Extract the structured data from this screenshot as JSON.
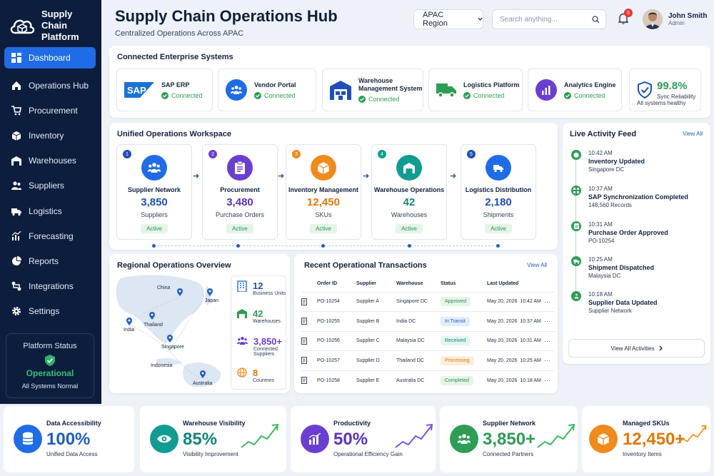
{
  "brand": {
    "name": "Supply Chain Platform"
  },
  "sidebar": {
    "items": [
      {
        "label": "Dashboard",
        "icon": "grid-icon"
      },
      {
        "label": "Operations Hub",
        "icon": "home-icon"
      },
      {
        "label": "Procurement",
        "icon": "cart-icon"
      },
      {
        "label": "Inventory",
        "icon": "box-icon"
      },
      {
        "label": "Warehouses",
        "icon": "warehouse-icon"
      },
      {
        "label": "Suppliers",
        "icon": "users-icon"
      },
      {
        "label": "Logistics",
        "icon": "truck-icon"
      },
      {
        "label": "Forecasting",
        "icon": "chart-icon"
      },
      {
        "label": "Reports",
        "icon": "report-icon"
      },
      {
        "label": "Integrations",
        "icon": "integrations-icon"
      },
      {
        "label": "Settings",
        "icon": "gear-icon"
      }
    ],
    "status": {
      "title": "Platform Status",
      "state": "Operational",
      "note": "All Systems Normal"
    }
  },
  "header": {
    "title": "Supply Chain Operations Hub",
    "subtitle": "Centralized Operations Across APAC",
    "region": "APAC Region",
    "search_placeholder": "Search anything...",
    "notifications": "5",
    "user": {
      "name": "John Smith",
      "role": "Admin"
    }
  },
  "connected": {
    "title": "Connected Enterprise Systems",
    "systems": [
      {
        "name": "SAP ERP",
        "status": "Connected"
      },
      {
        "name": "Vendor Portal",
        "status": "Connected"
      },
      {
        "name": "Warehouse Management System",
        "status": "Connected"
      },
      {
        "name": "Logistics Platform",
        "status": "Connected"
      },
      {
        "name": "Analytics Engine",
        "status": "Connected"
      }
    ],
    "reliability": {
      "value": "99.8%",
      "label": "Sync Reliability",
      "note": "All systems healthy"
    }
  },
  "workspace": {
    "title": "Unified Operations Workspace",
    "steps": [
      {
        "num": "1",
        "name": "Supplier Network",
        "value": "3,850",
        "sub": "Suppliers",
        "status": "Active",
        "color": "#1f6ce6"
      },
      {
        "num": "2",
        "name": "Procurement",
        "value": "3,480",
        "sub": "Purchase Orders",
        "status": "Active",
        "color": "#6a3fd0"
      },
      {
        "num": "3",
        "name": "Inventory Management",
        "value": "12,450",
        "sub": "SKUs",
        "status": "Active",
        "color": "#f08a1c"
      },
      {
        "num": "4",
        "name": "Warehouse Operations",
        "value": "42",
        "sub": "Warehouses",
        "status": "Active",
        "color": "#119c92"
      },
      {
        "num": "5",
        "name": "Logistics Distribution",
        "value": "2,180",
        "sub": "Shipments",
        "status": "Active",
        "color": "#1f6ce6"
      }
    ]
  },
  "feed": {
    "title": "Live Activity Feed",
    "view_all": "View All",
    "items": [
      {
        "time": "10:42 AM",
        "title": "Inventory Updated",
        "sub": "Singapore DC"
      },
      {
        "time": "10:37 AM",
        "title": "SAP Synchronization Completed",
        "sub": "148,560 Records"
      },
      {
        "time": "10:31 AM",
        "title": "Purchase Order Approved",
        "sub": "PO-10254"
      },
      {
        "time": "10:25 AM",
        "title": "Shipment Dispatched",
        "sub": "Malaysia DC"
      },
      {
        "time": "10:18 AM",
        "title": "Supplier Data Updated",
        "sub": "Supplier Network"
      }
    ],
    "view_all_activities": "View All Activities"
  },
  "regional": {
    "title": "Regional Operations Overview",
    "map_labels": [
      "China",
      "Japan",
      "India",
      "Thailand",
      "Singapore",
      "Indonesia",
      "Australia"
    ],
    "stats": [
      {
        "value": "12",
        "label": "Business Units",
        "color": "#1f6ce6"
      },
      {
        "value": "42",
        "label": "Warehouses",
        "color": "#2e9d55"
      },
      {
        "value": "3,850+",
        "label": "Connected Suppliers",
        "color": "#6a3fd0"
      },
      {
        "value": "8",
        "label": "Countries",
        "color": "#f08a1c"
      }
    ]
  },
  "transactions": {
    "title": "Recent Operational Transactions",
    "view_all": "View All",
    "columns": [
      "Order ID",
      "Supplier",
      "Warehouse",
      "Status",
      "Last Updated"
    ],
    "rows": [
      {
        "id": "PO-10254",
        "supplier": "Supplier A",
        "warehouse": "Singapore DC",
        "status": "Approved",
        "updated": "May 20, 2026  10:42 AM",
        "bg": "#e4f4e8",
        "fg": "#2f8f4f"
      },
      {
        "id": "PO-10255",
        "supplier": "Supplier B",
        "warehouse": "India DC",
        "status": "In Transit",
        "updated": "May 20, 2026  10:37 AM",
        "bg": "#e3edfc",
        "fg": "#1f5cc8"
      },
      {
        "id": "PO-10256",
        "supplier": "Supplier C",
        "warehouse": "Malaysia DC",
        "status": "Received",
        "updated": "May 20, 2026  10:31 AM",
        "bg": "#e1f4f1",
        "fg": "#11867c"
      },
      {
        "id": "PO-10257",
        "supplier": "Supplier D",
        "warehouse": "Thailand DC",
        "status": "Processing",
        "updated": "May 20, 2026  10:25 AM",
        "bg": "#fdeedb",
        "fg": "#d9770f"
      },
      {
        "id": "PO-10258",
        "supplier": "Supplier E",
        "warehouse": "Australia DC",
        "status": "Completed",
        "updated": "May 20, 2026  10:18 AM",
        "bg": "#e4f4e8",
        "fg": "#2f8f4f"
      }
    ]
  },
  "metrics": [
    {
      "title": "Data Accessibility",
      "value": "100%",
      "sub": "Unified Data Access",
      "color": "#1f6ce6"
    },
    {
      "title": "Warehouse Visibility",
      "value": "85%",
      "sub": "Visibility Improvement",
      "color": "#119c92"
    },
    {
      "title": "Productivity",
      "value": "50%",
      "sub": "Operational Efficiency Gain",
      "color": "#6a3fd0"
    },
    {
      "title": "Supplier Network",
      "value": "3,850+",
      "sub": "Connected Partners",
      "color": "#2e9d55"
    },
    {
      "title": "Managed SKUs",
      "value": "12,450+",
      "sub": "Inventory Items",
      "color": "#f08a1c"
    }
  ]
}
